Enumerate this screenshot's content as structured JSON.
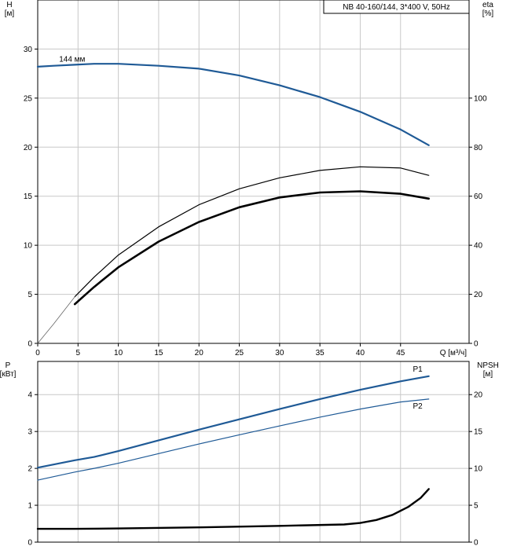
{
  "title": "NB 40-160/144, 3*400 V, 50Hz",
  "colors": {
    "blue": "#1f5a96",
    "black": "#000000",
    "grid": "#c8c8c8"
  },
  "chart_data": [
    {
      "type": "line",
      "panel": "top",
      "title": "NB 40-160/144, 3*400 V, 50Hz",
      "xlabel": "Q [м³/ч]",
      "x_ticks": [
        0,
        5,
        10,
        15,
        20,
        25,
        30,
        35,
        40,
        45
      ],
      "xlim": [
        0,
        53.5
      ],
      "ylabel_left": "H\n[м]",
      "left_ticks": [
        0,
        5,
        10,
        15,
        20,
        25,
        30
      ],
      "ylim_left": [
        0,
        35
      ],
      "ylabel_right": "eta\n[%]",
      "right_ticks": [
        0,
        20,
        40,
        60,
        80,
        100
      ],
      "ylim_right": [
        0,
        140
      ],
      "grid": true,
      "series": [
        {
          "name": "144 мм",
          "axis": "left",
          "color": "#1f5a96",
          "width": 2.2,
          "x": [
            0,
            2,
            4.6,
            7,
            10,
            15,
            20,
            25,
            30,
            35,
            40,
            45,
            48.5
          ],
          "y": [
            28.2,
            28.3,
            28.4,
            28.5,
            28.5,
            28.3,
            28.0,
            27.3,
            26.3,
            25.1,
            23.6,
            21.8,
            20.2
          ]
        },
        {
          "name": "",
          "axis": "right",
          "color": "#000000",
          "width": 1.2,
          "x": [
            4.6,
            7,
            10,
            15,
            20,
            25,
            30,
            35,
            40,
            45,
            48.5
          ],
          "y": [
            19,
            27,
            36,
            47.5,
            56.5,
            63,
            67.5,
            70.5,
            72,
            71.5,
            68.5
          ]
        },
        {
          "name": "",
          "axis": "right",
          "color": "#000000",
          "width": 2.6,
          "x": [
            4.6,
            7,
            10,
            15,
            20,
            25,
            30,
            35,
            40,
            45,
            48.5
          ],
          "y": [
            16,
            23,
            31,
            41.5,
            49.5,
            55.5,
            59.5,
            61.5,
            62,
            61,
            59
          ]
        },
        {
          "name": "",
          "axis": "right",
          "color": "#666666",
          "width": 0.8,
          "x": [
            0,
            2,
            4.6
          ],
          "y": [
            0,
            8,
            19
          ]
        }
      ]
    },
    {
      "type": "line",
      "panel": "bottom",
      "xlim": [
        0,
        53.5
      ],
      "ylabel_left": "P\n[кВт]",
      "left_ticks": [
        0,
        1,
        2,
        3,
        4
      ],
      "ylim_left": [
        0,
        4.9
      ],
      "ylabel_right": "NPSH\n[м]",
      "right_ticks": [
        0,
        5,
        10,
        15,
        20
      ],
      "ylim_right": [
        0,
        24.5
      ],
      "grid": true,
      "series": [
        {
          "name": "P1",
          "axis": "left",
          "color": "#1f5a96",
          "width": 2.2,
          "x": [
            0,
            4.6,
            7,
            10,
            15,
            20,
            25,
            30,
            35,
            40,
            45,
            48.5
          ],
          "y": [
            2.02,
            2.22,
            2.31,
            2.47,
            2.76,
            3.05,
            3.33,
            3.61,
            3.88,
            4.13,
            4.36,
            4.5
          ]
        },
        {
          "name": "P2",
          "axis": "left",
          "color": "#1f5a96",
          "width": 1.2,
          "x": [
            0,
            4.6,
            7,
            10,
            15,
            20,
            25,
            30,
            35,
            40,
            45,
            48.5
          ],
          "y": [
            1.68,
            1.9,
            2.0,
            2.14,
            2.4,
            2.66,
            2.91,
            3.15,
            3.39,
            3.61,
            3.8,
            3.88
          ]
        },
        {
          "name": "",
          "axis": "right",
          "color": "#000000",
          "width": 2.4,
          "x": [
            0,
            4.6,
            10,
            20,
            30,
            38,
            40,
            42,
            44,
            46,
            47.5,
            48.5
          ],
          "y": [
            1.8,
            1.8,
            1.85,
            2.0,
            2.2,
            2.4,
            2.6,
            3.0,
            3.7,
            4.8,
            6.0,
            7.2
          ]
        }
      ]
    }
  ]
}
